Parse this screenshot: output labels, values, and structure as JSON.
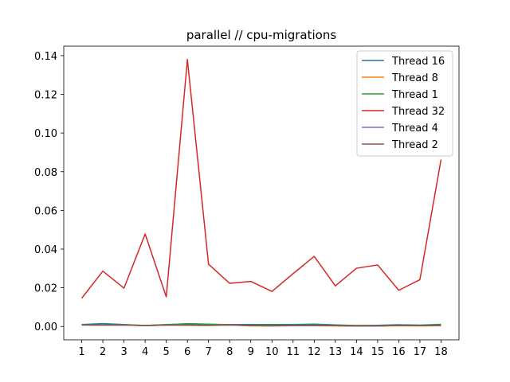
{
  "chart_data": {
    "type": "line",
    "title": "parallel // cpu-migrations",
    "xlabel": "",
    "ylabel": "",
    "x": [
      1,
      2,
      3,
      4,
      5,
      6,
      7,
      8,
      9,
      10,
      11,
      12,
      13,
      14,
      15,
      16,
      17,
      18
    ],
    "xlim": [
      0.15,
      18.85
    ],
    "ylim": [
      -0.0069,
      0.1449
    ],
    "yticks": [
      0.0,
      0.02,
      0.04,
      0.06,
      0.08,
      0.1,
      0.12,
      0.14
    ],
    "ytick_labels": [
      "0.00",
      "0.02",
      "0.04",
      "0.06",
      "0.08",
      "0.10",
      "0.12",
      "0.14"
    ],
    "grid": false,
    "legend_position": "top-right",
    "series": [
      {
        "name": "Thread 16",
        "color": "#1f77b4",
        "values": [
          0.001,
          0.0015,
          0.001,
          0.0005,
          0.001,
          0.0012,
          0.001,
          0.001,
          0.001,
          0.001,
          0.001,
          0.0012,
          0.0008,
          0.0005,
          0.0006,
          0.0009,
          0.0007,
          0.0011
        ]
      },
      {
        "name": "Thread 8",
        "color": "#ff7f0e",
        "values": [
          0.0008,
          0.0007,
          0.0008,
          0.0004,
          0.0007,
          0.0006,
          0.0006,
          0.0008,
          0.0003,
          0.0003,
          0.0004,
          0.0004,
          0.0003,
          0.0002,
          0.0002,
          0.0004,
          0.0003,
          0.0004
        ]
      },
      {
        "name": "Thread 1",
        "color": "#2ca02c",
        "values": [
          0.0009,
          0.0008,
          0.0009,
          0.0005,
          0.0009,
          0.0015,
          0.0012,
          0.0009,
          0.0007,
          0.0008,
          0.0007,
          0.0008,
          0.0006,
          0.0005,
          0.0004,
          0.0007,
          0.0006,
          0.0009
        ]
      },
      {
        "name": "Thread 32",
        "color": "#d62728",
        "values": [
          0.0146,
          0.0286,
          0.0198,
          0.0478,
          0.0153,
          0.138,
          0.0322,
          0.0223,
          0.0233,
          0.0181,
          0.0273,
          0.0362,
          0.021,
          0.0301,
          0.0318,
          0.0187,
          0.0242,
          0.0863
        ]
      },
      {
        "name": "Thread 4",
        "color": "#9467bd",
        "values": [
          0.0007,
          0.0007,
          0.0007,
          0.0004,
          0.0007,
          0.0006,
          0.0005,
          0.0007,
          0.0004,
          0.0003,
          0.0004,
          0.0005,
          0.0004,
          0.0003,
          0.0003,
          0.0005,
          0.0004,
          0.0005
        ]
      },
      {
        "name": "Thread 2",
        "color": "#8c564b",
        "values": [
          0.0008,
          0.0007,
          0.0008,
          0.0004,
          0.0008,
          0.0007,
          0.0006,
          0.0009,
          0.0005,
          0.0004,
          0.0005,
          0.0005,
          0.0004,
          0.0003,
          0.0003,
          0.0005,
          0.0004,
          0.0005
        ]
      }
    ]
  }
}
